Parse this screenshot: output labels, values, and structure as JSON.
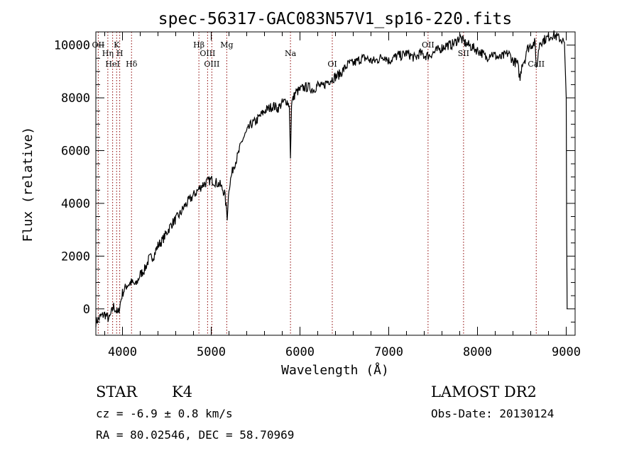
{
  "chart_data": {
    "type": "line",
    "title": "spec-56317-GAC083N57V1_sp16-220.fits",
    "xlabel": "Wavelength (Å)",
    "ylabel": "Flux (relative)",
    "xlim": [
      3700,
      9100
    ],
    "ylim": [
      -1000,
      10500
    ],
    "x_ticks": [
      4000,
      5000,
      6000,
      7000,
      8000,
      9000
    ],
    "x_tick_labels": [
      "4000",
      "5000",
      "6000",
      "7000",
      "8000",
      "9000"
    ],
    "y_ticks": [
      0,
      2000,
      4000,
      6000,
      8000,
      10000
    ],
    "y_tick_labels": [
      "0",
      "2000",
      "4000",
      "6000",
      "8000",
      "10000"
    ],
    "grid": false,
    "spectrum": {
      "x": [
        3700,
        3750,
        3800,
        3850,
        3900,
        3950,
        4000,
        4050,
        4100,
        4150,
        4200,
        4250,
        4300,
        4350,
        4400,
        4450,
        4500,
        4550,
        4600,
        4650,
        4700,
        4750,
        4800,
        4850,
        4900,
        4950,
        5000,
        5050,
        5100,
        5150,
        5180,
        5200,
        5250,
        5300,
        5350,
        5400,
        5450,
        5500,
        5550,
        5600,
        5650,
        5700,
        5750,
        5800,
        5850,
        5880,
        5893,
        5905,
        5950,
        6000,
        6050,
        6100,
        6150,
        6200,
        6250,
        6300,
        6350,
        6400,
        6450,
        6500,
        6550,
        6600,
        6650,
        6700,
        6750,
        6800,
        6850,
        6900,
        6950,
        7000,
        7050,
        7100,
        7150,
        7200,
        7250,
        7300,
        7350,
        7400,
        7450,
        7500,
        7550,
        7600,
        7650,
        7700,
        7750,
        7800,
        7850,
        7900,
        7950,
        8000,
        8050,
        8100,
        8150,
        8200,
        8250,
        8300,
        8350,
        8400,
        8450,
        8480,
        8500,
        8542,
        8550,
        8600,
        8650,
        8662,
        8700,
        8750,
        8800,
        8850,
        8900,
        8950,
        8980,
        8990,
        9000,
        9005,
        9010
      ],
      "y": [
        -500,
        -300,
        -200,
        -400,
        100,
        -200,
        600,
        900,
        1000,
        900,
        1300,
        1500,
        1900,
        2000,
        2400,
        2600,
        2900,
        3200,
        3400,
        3600,
        3900,
        4100,
        4300,
        4500,
        4700,
        4800,
        4900,
        4800,
        4700,
        4400,
        3500,
        4600,
        5400,
        5800,
        6400,
        6700,
        7000,
        7100,
        7300,
        7500,
        7600,
        7700,
        7600,
        7800,
        7900,
        7700,
        5700,
        7800,
        8200,
        8300,
        8400,
        8400,
        8300,
        8500,
        8400,
        8600,
        8700,
        8800,
        8900,
        9100,
        9300,
        9300,
        9400,
        9500,
        9500,
        9400,
        9400,
        9500,
        9600,
        9400,
        9500,
        9600,
        9600,
        9700,
        9600,
        9500,
        9700,
        9600,
        9600,
        9700,
        9800,
        9900,
        10000,
        10000,
        10100,
        10300,
        10100,
        10000,
        9900,
        9800,
        9700,
        9500,
        9700,
        9600,
        9500,
        9600,
        9700,
        9400,
        9300,
        8700,
        9300,
        9500,
        9800,
        10000,
        10100,
        9000,
        10100,
        10200,
        10300,
        10400,
        10300,
        10200,
        10100,
        9000,
        8000,
        3000,
        0
      ]
    },
    "lines": [
      {
        "label": "OII",
        "x": 3727
      },
      {
        "label": "Hη",
        "x": 3835
      },
      {
        "label": "HeI",
        "x": 3889
      },
      {
        "label": "K",
        "x": 3934
      },
      {
        "label": "H",
        "x": 3969
      },
      {
        "label": "Hδ",
        "x": 4102
      },
      {
        "label": "Hβ",
        "x": 4861
      },
      {
        "label": "OIII",
        "x": 4959
      },
      {
        "label": "OIII",
        "x": 5007
      },
      {
        "label": "Mg",
        "x": 5175
      },
      {
        "label": "Na",
        "x": 5893
      },
      {
        "label": "OI",
        "x": 6364
      },
      {
        "label": "OII",
        "x": 7443
      },
      {
        "label": "SII",
        "x": 7843
      },
      {
        "label": "CaII",
        "x": 8662
      }
    ],
    "colors": {
      "spectrum": "#000000",
      "lines": "#8b0000",
      "axes": "#000000"
    }
  },
  "info": {
    "object_type": "STAR",
    "subclass": "K4",
    "survey": "LAMOST DR2",
    "redshift": "cz = -6.9 ± 0.8 km/s",
    "obs_date": "Obs-Date: 20130124",
    "coordinates": "RA =  80.02546, DEC =  58.70969"
  }
}
